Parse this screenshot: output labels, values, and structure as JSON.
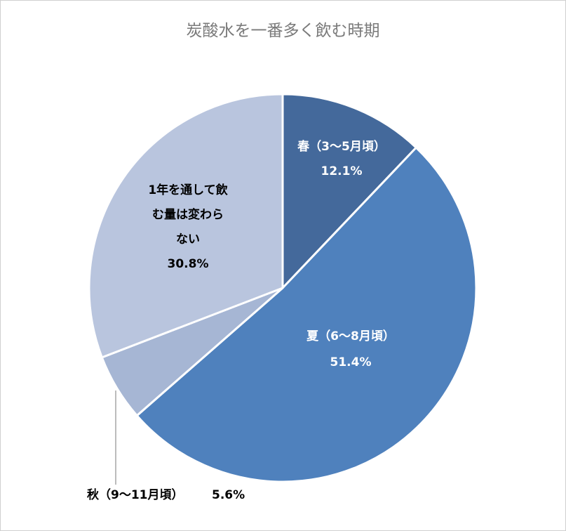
{
  "chart_data": {
    "type": "pie",
    "title": "炭酸水を一番多く飲む時期",
    "slices": [
      {
        "label": "春（3〜5月頃）",
        "value": 12.1,
        "value_label": "12.1%",
        "color": "#44699b",
        "label_color": "#ffffff"
      },
      {
        "label": "夏（6〜8月頃）",
        "value": 51.4,
        "value_label": "51.4%",
        "color": "#4f81bd",
        "label_color": "#ffffff"
      },
      {
        "label": "秋（9〜11月頃）",
        "value": 5.6,
        "value_label": "5.6%",
        "color": "#a6b6d4",
        "label_color": "#000000"
      },
      {
        "label_lines": [
          "1年を通して飲",
          "む量は変わら",
          "ない"
        ],
        "value": 30.8,
        "value_label": "30.8%",
        "color": "#b9c5de",
        "label_color": "#000000"
      }
    ],
    "start_angle": "12 o'clock",
    "direction": "clockwise"
  }
}
